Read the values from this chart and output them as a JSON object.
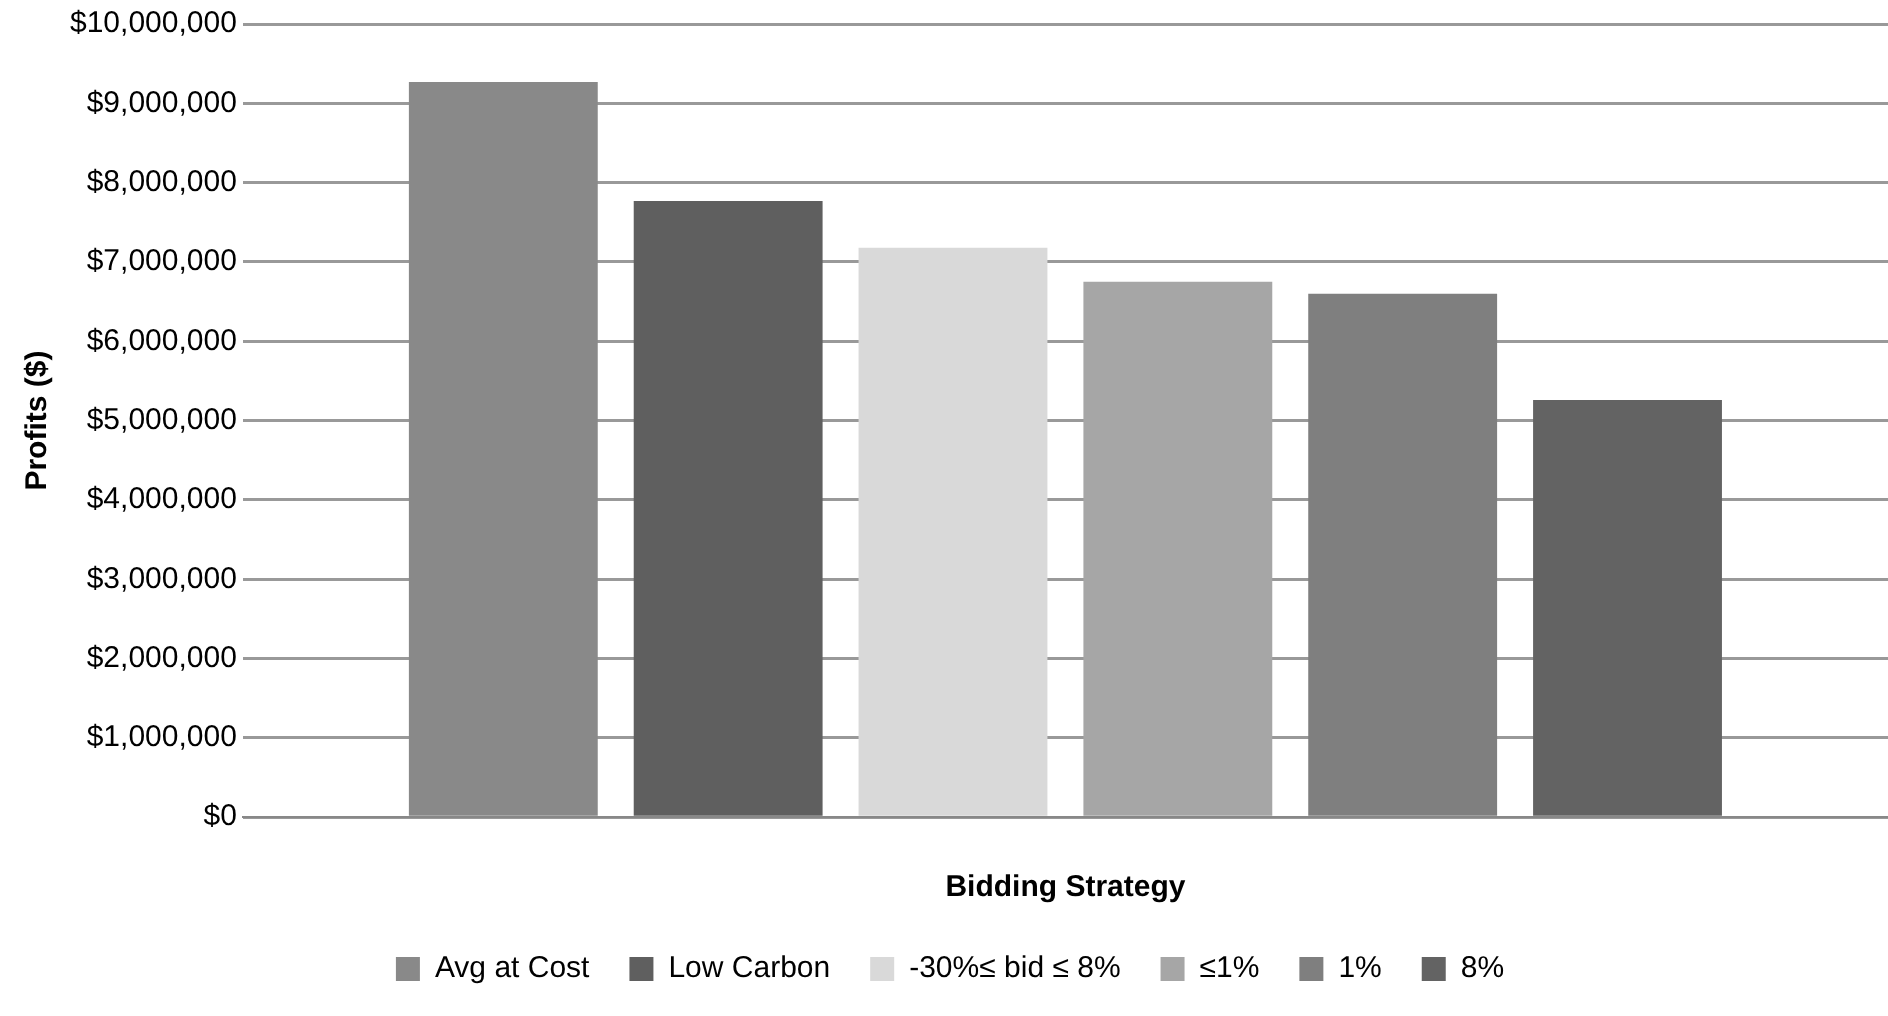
{
  "chart_data": {
    "type": "bar",
    "xlabel": "Bidding Strategy",
    "ylabel": "Profits ($)",
    "categories": [
      null
    ],
    "series": [
      {
        "name": "Avg at Cost",
        "color": "#898989",
        "values": [
          9270000
        ]
      },
      {
        "name": "Low Carbon",
        "color": "#5f5f5f",
        "values": [
          7770000
        ]
      },
      {
        "name": "-30%≤ bid ≤ 8%",
        "color": "#d9d9d9",
        "values": [
          7180000
        ]
      },
      {
        "name": "≤1%",
        "color": "#a6a6a6",
        "values": [
          6750000
        ]
      },
      {
        "name": "1%",
        "color": "#7f7f7f",
        "values": [
          6600000
        ]
      },
      {
        "name": "8%",
        "color": "#636363",
        "values": [
          5260000
        ]
      }
    ],
    "ylim": [
      0,
      10000000
    ],
    "yticks": [
      {
        "value": 0,
        "label": "$0"
      },
      {
        "value": 1000000,
        "label": "$1,000,000"
      },
      {
        "value": 2000000,
        "label": "$2,000,000"
      },
      {
        "value": 3000000,
        "label": "$3,000,000"
      },
      {
        "value": 4000000,
        "label": "$4,000,000"
      },
      {
        "value": 5000000,
        "label": "$5,000,000"
      },
      {
        "value": 6000000,
        "label": "$6,000,000"
      },
      {
        "value": 7000000,
        "label": "$7,000,000"
      },
      {
        "value": 8000000,
        "label": "$8,000,000"
      },
      {
        "value": 9000000,
        "label": "$9,000,000"
      },
      {
        "value": 10000000,
        "label": "$10,000,000"
      }
    ],
    "grid": "y",
    "legend": "bottom"
  }
}
